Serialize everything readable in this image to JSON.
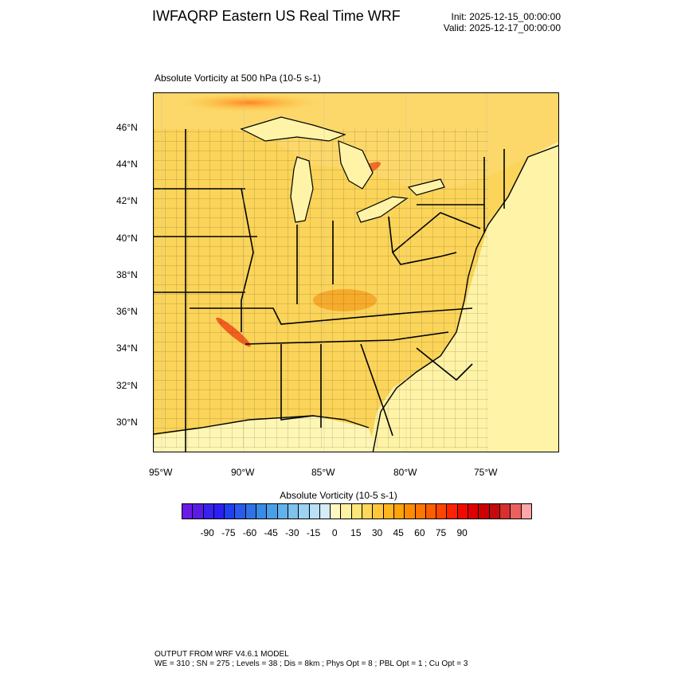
{
  "header": {
    "title": "IWFAQRP Eastern US Real Time WRF",
    "init": "Init: 2025-12-15_00:00:00",
    "valid": "Valid: 2025-12-17_00:00:00"
  },
  "map": {
    "field_label": "Absolute Vorticity at 500 hPa   (10-5 s-1)",
    "lat_labels": [
      "46°N",
      "44°N",
      "42°N",
      "40°N",
      "38°N",
      "36°N",
      "34°N",
      "32°N",
      "30°N"
    ],
    "lon_labels": [
      "95°W",
      "90°W",
      "85°W",
      "80°W",
      "75°W"
    ],
    "colors": {
      "background_fill": "#fbd45a",
      "ocean_fill": "#fef3a6",
      "strong_positive": "#f05a1c",
      "negative": "#a6d6f0",
      "boundary": "#000000"
    }
  },
  "colorbar": {
    "title": "Absolute Vorticity  (10-5 s-1)",
    "labels": [
      "-90",
      "-75",
      "-60",
      "-45",
      "-30",
      "-15",
      "0",
      "15",
      "30",
      "45",
      "60",
      "75",
      "90"
    ],
    "colors": [
      "#6a1be6",
      "#5a1be6",
      "#3a22ee",
      "#2a20f4",
      "#1f3ff0",
      "#2a5bea",
      "#2f74e6",
      "#3a8ae6",
      "#4aa0e8",
      "#62b2ea",
      "#7ec2ee",
      "#9cd2f2",
      "#bae0f6",
      "#d4ecf8",
      "#fff8c2",
      "#fff2a0",
      "#ffe67a",
      "#ffd85a",
      "#ffc83a",
      "#ffb61e",
      "#ffa20c",
      "#ff8c00",
      "#ff7600",
      "#ff5e00",
      "#ff4400",
      "#ff2200",
      "#f20a00",
      "#e00000",
      "#cc0000",
      "#c40a0a",
      "#d83030",
      "#ec6060",
      "#ffa6a6"
    ]
  },
  "footer": {
    "line1": "OUTPUT FROM WRF V4.6.1 MODEL",
    "line2": "WE = 310 ; SN = 275 ; Levels = 38 ; Dis = 8km ; Phys Opt = 8 ; PBL Opt = 1 ; Cu Opt = 3"
  }
}
